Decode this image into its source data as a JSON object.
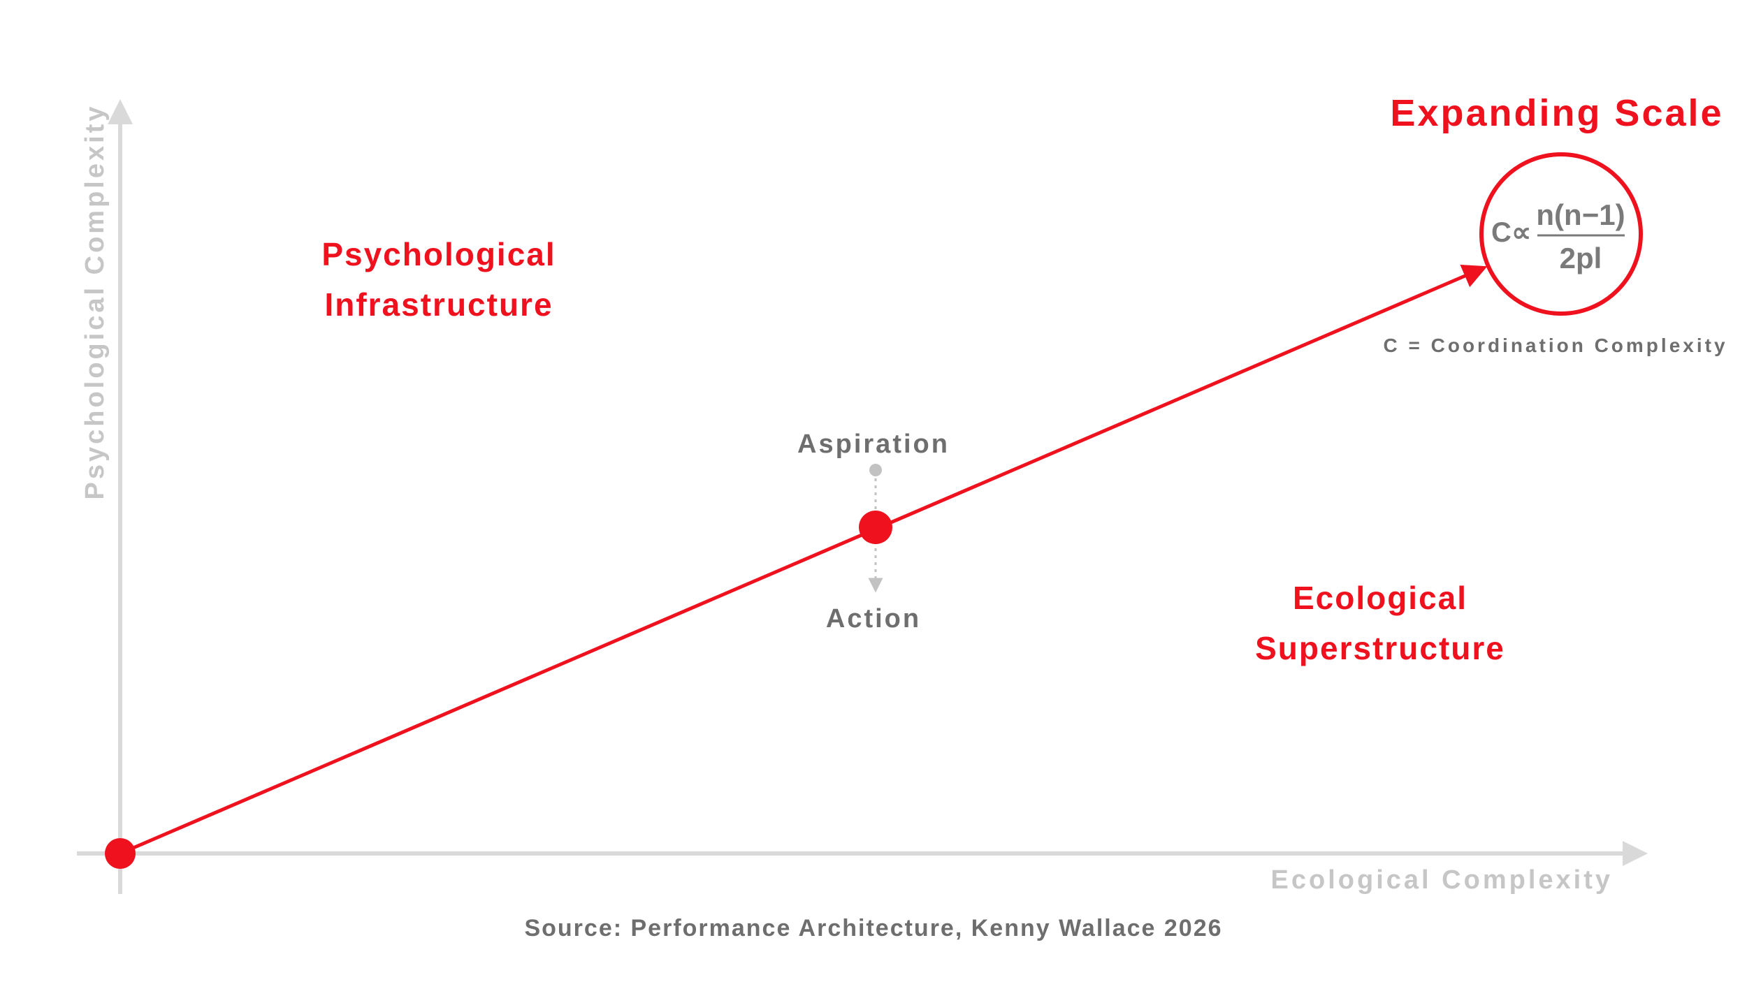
{
  "axes": {
    "x_label": "Ecological Complexity",
    "y_label": "Psychological Complexity"
  },
  "regions": {
    "upper_left": [
      "Psychological",
      "Infrastructure"
    ],
    "lower_right": [
      "Ecological",
      "Superstructure"
    ]
  },
  "title": "Expanding Scale",
  "midpoint": {
    "top_label": "Aspiration",
    "bottom_label": "Action"
  },
  "formula": {
    "lhs": "C∝",
    "numerator": "n(n−1)",
    "denominator": "2pl",
    "note": "C = Coordination Complexity"
  },
  "source": "Source: Performance Architecture, Kenny Wallace 2026",
  "colors": {
    "accent": "#f0111e",
    "axis": "#d9d9d9",
    "muted_text": "#6e6e6e",
    "axis_text": "#c6c6c6"
  }
}
